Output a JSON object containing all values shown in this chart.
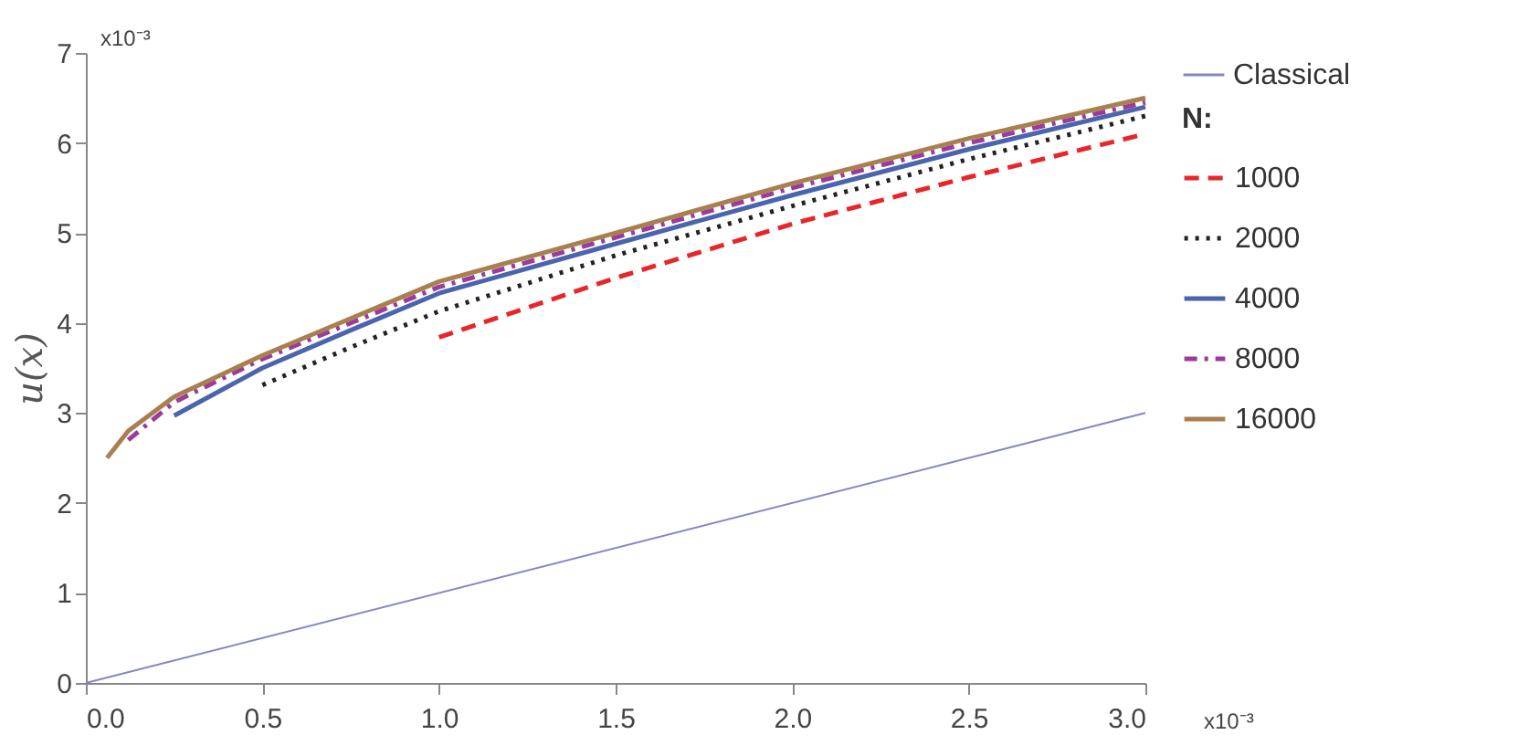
{
  "chart_data": {
    "type": "line",
    "ylabel": "u(x)",
    "legend_title": "N:",
    "legend": "right",
    "grid": false,
    "xlim": [
      0,
      3
    ],
    "xticks": [
      {
        "value": 0,
        "label": "0.0"
      },
      {
        "value": 0.5,
        "label": "0.5"
      },
      {
        "value": 1,
        "label": "1.0"
      },
      {
        "value": 1.5,
        "label": "1.5"
      },
      {
        "value": 2,
        "label": "2.0"
      },
      {
        "value": 2.5,
        "label": "2.5"
      },
      {
        "value": 3,
        "label": "3.0"
      }
    ],
    "ylim": [
      0,
      7
    ],
    "yticks": [
      0,
      1,
      2,
      3,
      4,
      5,
      6,
      7
    ],
    "annotations": [
      "x10⁻³",
      "x10⁻³"
    ],
    "series": [
      {
        "name": "Classical",
        "color": "#8585c8",
        "line_style": "solid",
        "x": [
          0,
          3
        ],
        "values": [
          0,
          3
        ]
      },
      {
        "name": "1000",
        "color": "#e8262a",
        "line_style": "dashed",
        "x": [
          1,
          1.5,
          2,
          2.5,
          3
        ],
        "values": [
          3.84,
          4.5,
          5.1,
          5.62,
          6.1
        ]
      },
      {
        "name": "2000",
        "color": "#222222",
        "line_style": "dotted",
        "x": [
          0.5,
          0.75,
          1,
          1.5,
          2,
          2.5,
          3
        ],
        "values": [
          3.31,
          3.73,
          4.13,
          4.75,
          5.3,
          5.82,
          6.3
        ]
      },
      {
        "name": "4000",
        "color": "#4a64ad",
        "line_style": "solid",
        "x": [
          0.25,
          0.5,
          0.75,
          1,
          1.5,
          2,
          2.5,
          3
        ],
        "values": [
          2.97,
          3.5,
          3.92,
          4.33,
          4.88,
          5.42,
          5.93,
          6.4
        ]
      },
      {
        "name": "8000",
        "color": "#9b3b9b",
        "line_style": "dashdot",
        "x": [
          0.12,
          0.25,
          0.5,
          0.75,
          1,
          1.5,
          2,
          2.5,
          3
        ],
        "values": [
          2.7,
          3.12,
          3.6,
          4.0,
          4.4,
          4.95,
          5.5,
          6.0,
          6.45
        ]
      },
      {
        "name": "16000",
        "color": "#a88050",
        "line_style": "solid",
        "x": [
          0.06,
          0.12,
          0.25,
          0.5,
          0.75,
          1,
          1.5,
          2,
          2.5,
          3
        ],
        "values": [
          2.5,
          2.8,
          3.18,
          3.64,
          4.05,
          4.46,
          5.0,
          5.55,
          6.05,
          6.5
        ]
      }
    ]
  }
}
